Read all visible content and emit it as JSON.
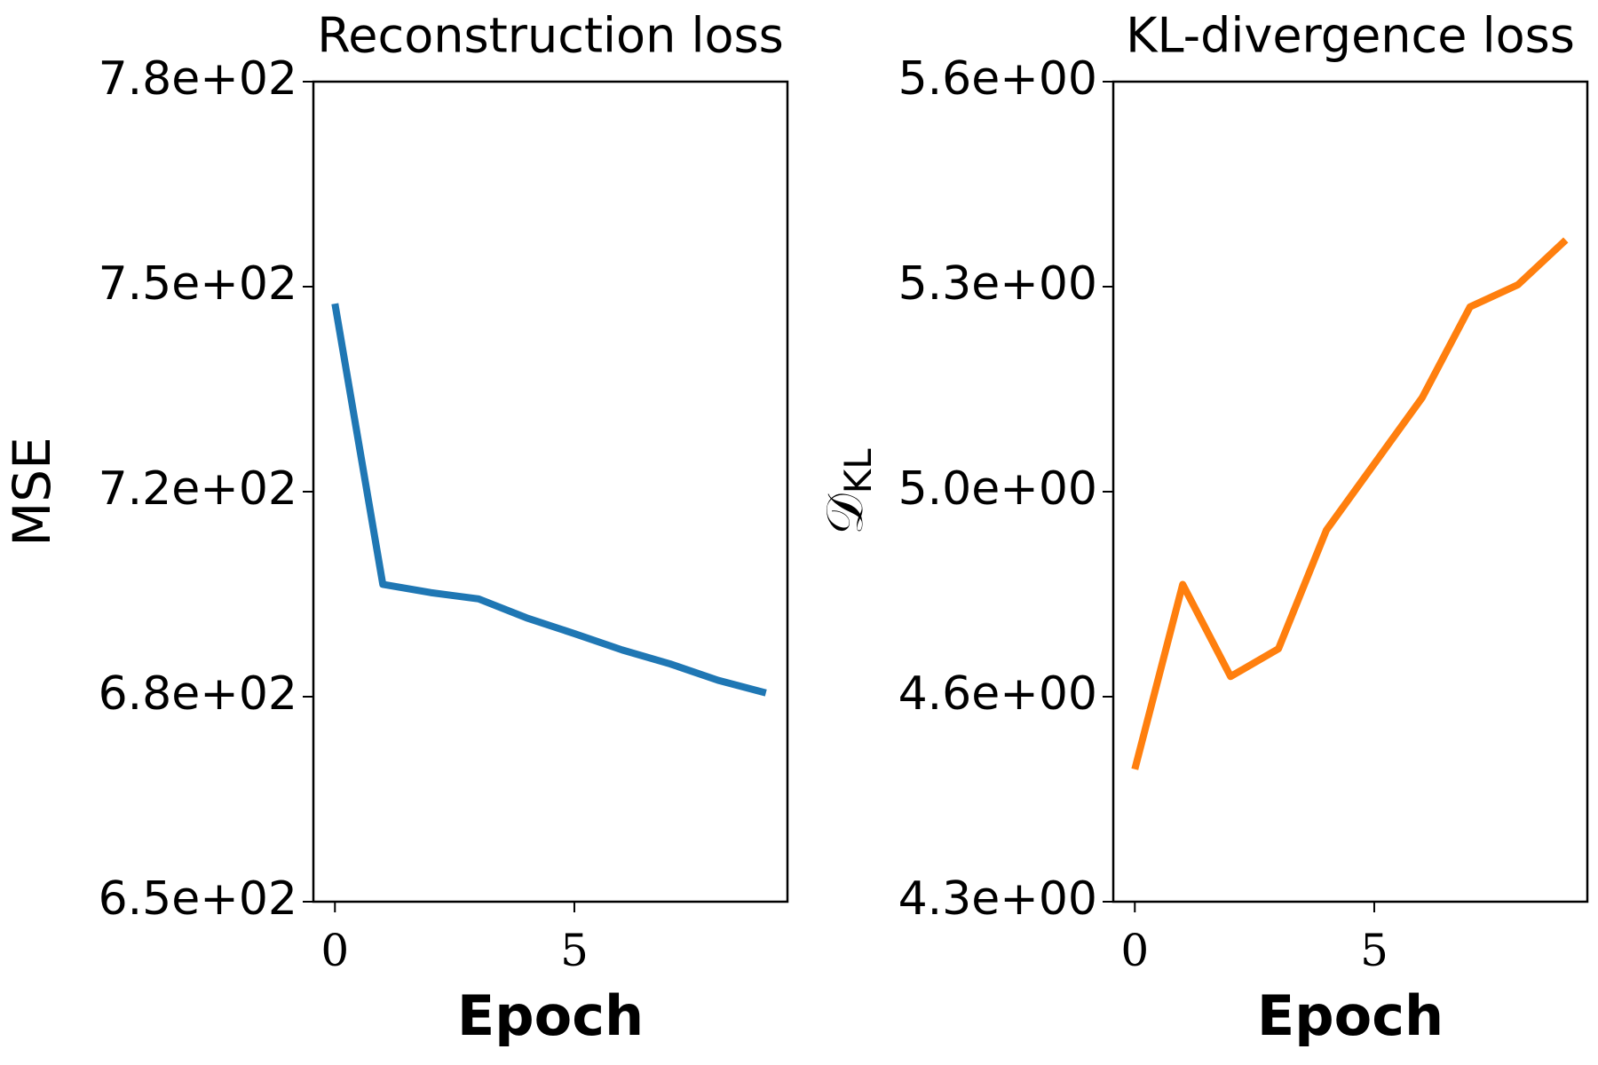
{
  "chart_data": [
    {
      "type": "line",
      "title": "Reconstruction loss",
      "xlabel": "Epoch",
      "ylabel": "MSE",
      "x": [
        0,
        1,
        2,
        3,
        4,
        5,
        6,
        7,
        8,
        9
      ],
      "series": [
        {
          "color": "#1f77b4",
          "values": [
            744.8,
            700.3,
            699.0,
            698.0,
            695.0,
            692.5,
            689.9,
            687.7,
            685.1,
            683.1
          ]
        }
      ],
      "xlim": [
        -0.45,
        9.45
      ],
      "xticks": [
        0,
        5
      ],
      "ylim": [
        650,
        780
      ],
      "yticks": [
        {
          "value": 650,
          "label": "6.5e+02"
        },
        {
          "value": 682.5,
          "label": "6.8e+02"
        },
        {
          "value": 715,
          "label": "7.2e+02"
        },
        {
          "value": 747.5,
          "label": "7.5e+02"
        },
        {
          "value": 780,
          "label": "7.8e+02"
        }
      ]
    },
    {
      "type": "line",
      "title": "KL-divergence loss",
      "xlabel": "Epoch",
      "ylabel": "𝒟",
      "ylabel_subscript": "KL",
      "x": [
        0,
        1,
        2,
        3,
        4,
        5,
        6,
        7,
        8,
        9
      ],
      "series": [
        {
          "color": "#ff7f0e",
          "values": [
            4.51,
            4.803,
            4.657,
            4.701,
            4.889,
            4.994,
            5.099,
            5.243,
            5.278,
            5.349
          ]
        }
      ],
      "xlim": [
        -0.45,
        9.45
      ],
      "xticks": [
        0,
        5
      ],
      "ylim": [
        4.3,
        5.6
      ],
      "yticks": [
        {
          "value": 4.3,
          "label": "4.3e+00"
        },
        {
          "value": 4.625,
          "label": "4.6e+00"
        },
        {
          "value": 4.95,
          "label": "5.0e+00"
        },
        {
          "value": 5.275,
          "label": "5.3e+00"
        },
        {
          "value": 5.6,
          "label": "5.6e+00"
        }
      ]
    }
  ]
}
